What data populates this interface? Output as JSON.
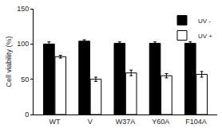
{
  "chart_data": {
    "type": "bar",
    "y_label": "Cell viability (%)",
    "categories": [
      "WT",
      "V",
      "W37A",
      "Y60A",
      "F104A"
    ],
    "series": [
      {
        "name": "UV -",
        "color": "#000000",
        "values": [
          100,
          104,
          101,
          101,
          101
        ],
        "errors": [
          3,
          2,
          2,
          2,
          2
        ]
      },
      {
        "name": "UV +",
        "color": "#ffffff",
        "values": [
          82,
          50,
          59,
          55,
          57
        ],
        "errors": [
          2,
          3,
          4,
          3,
          4
        ]
      }
    ],
    "ylim": [
      0,
      150
    ],
    "yticks": [
      0,
      50,
      100,
      150
    ],
    "grid": false,
    "legend": "upper right"
  }
}
